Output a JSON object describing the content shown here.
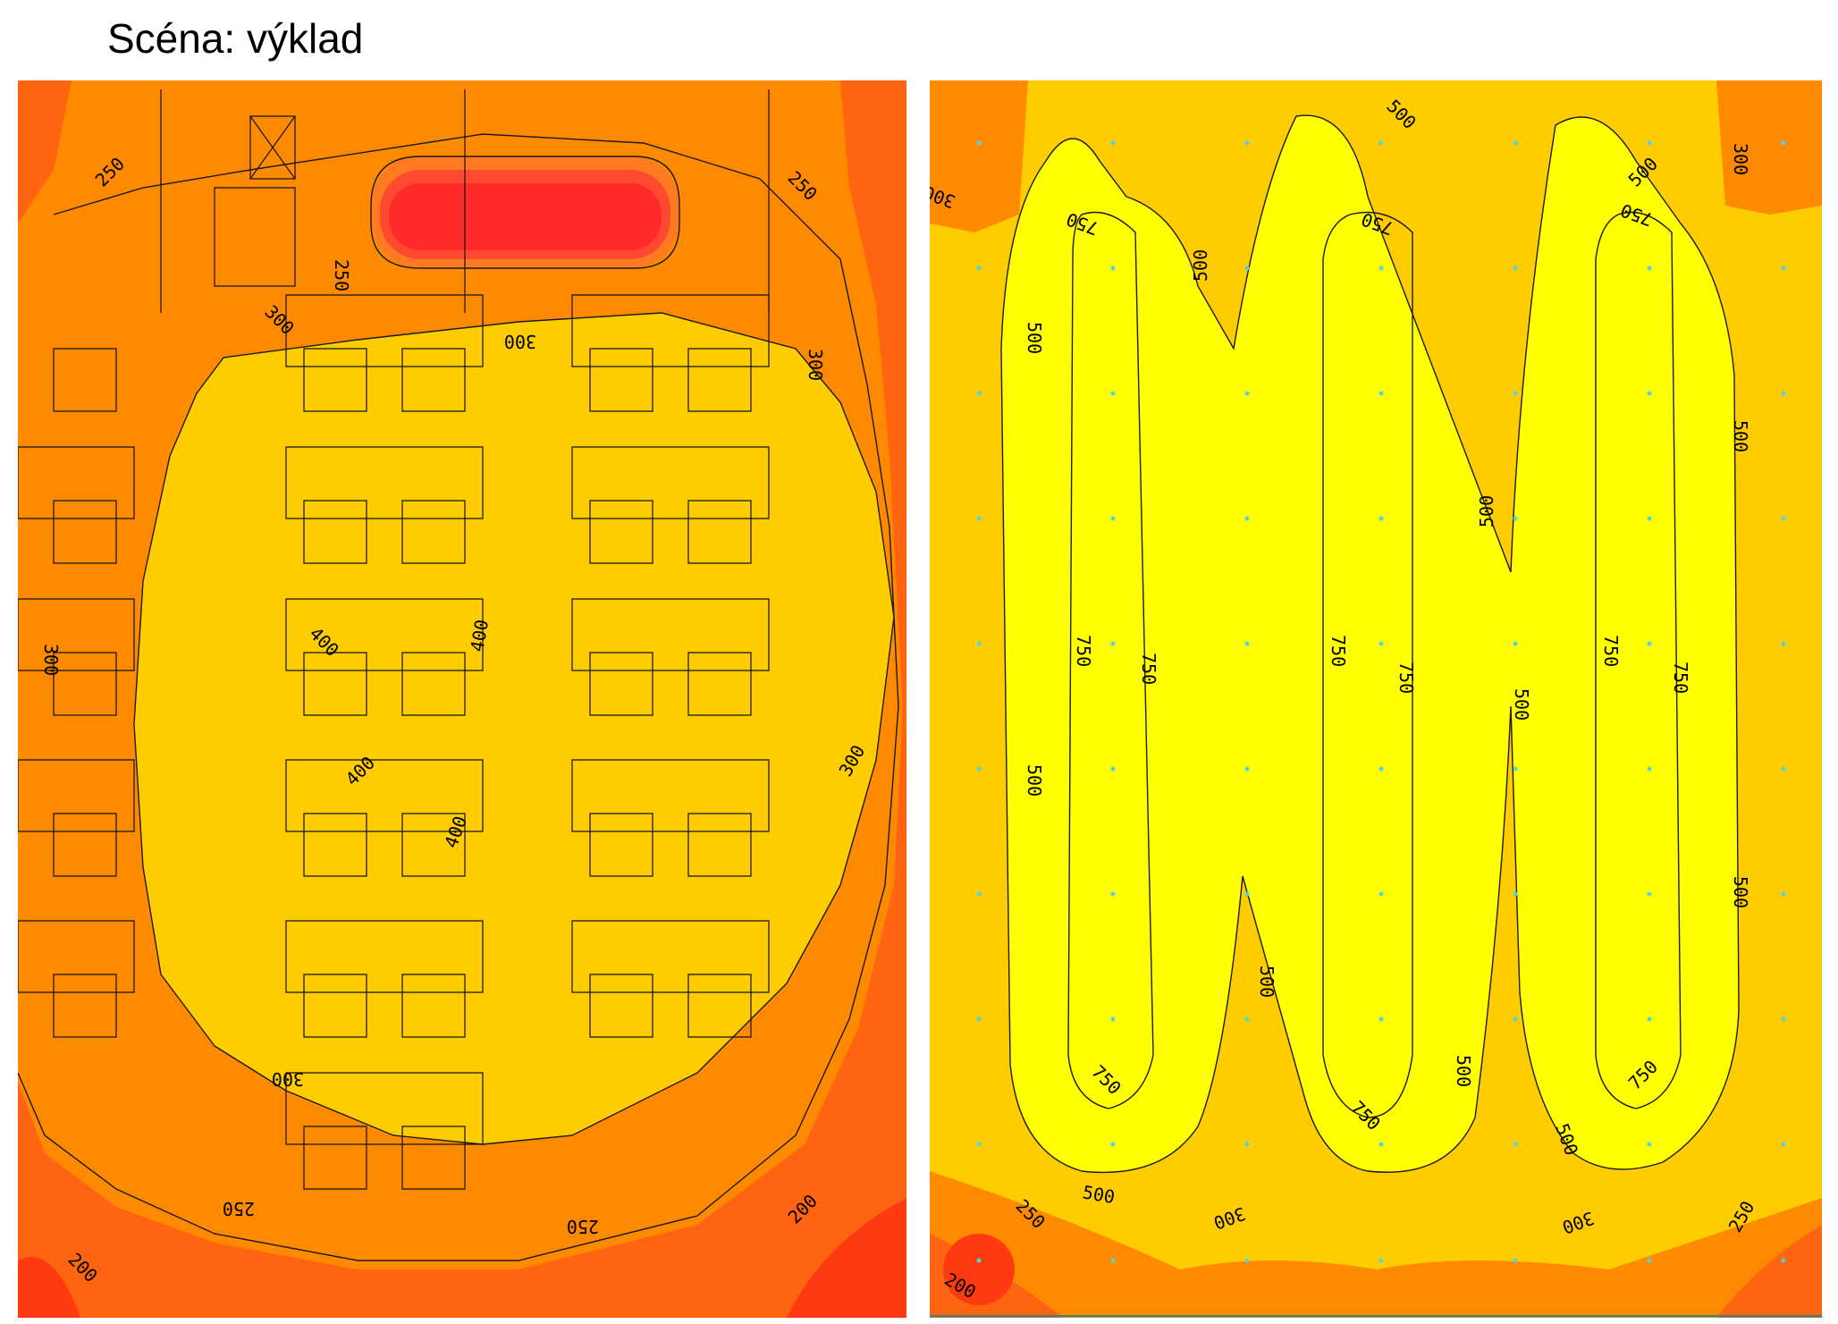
{
  "title": "Scéna: výklad",
  "colors": {
    "c200": "#ff3a10",
    "c250": "#ff6410",
    "c300": "#ff8a00",
    "c400": "#ffcc00",
    "c500": "#ffff00",
    "c750": "#ffff00",
    "hotspot": "#ff2a2a",
    "line": "#1a1a1a",
    "grid_point": "#4fd4e8"
  },
  "left_panel": {
    "labels": [
      "250",
      "250",
      "250",
      "300",
      "300",
      "300",
      "300",
      "300",
      "300",
      "400",
      "400",
      "400",
      "400",
      "250",
      "250",
      "200",
      "200"
    ]
  },
  "right_panel": {
    "labels": [
      "500",
      "500",
      "300",
      "300",
      "750",
      "750",
      "750",
      "500",
      "500",
      "500",
      "500",
      "750",
      "750",
      "750",
      "750",
      "750",
      "750",
      "500",
      "500",
      "500",
      "750",
      "750",
      "750",
      "500",
      "500",
      "500",
      "300",
      "300",
      "250",
      "250",
      "200",
      "500"
    ]
  }
}
